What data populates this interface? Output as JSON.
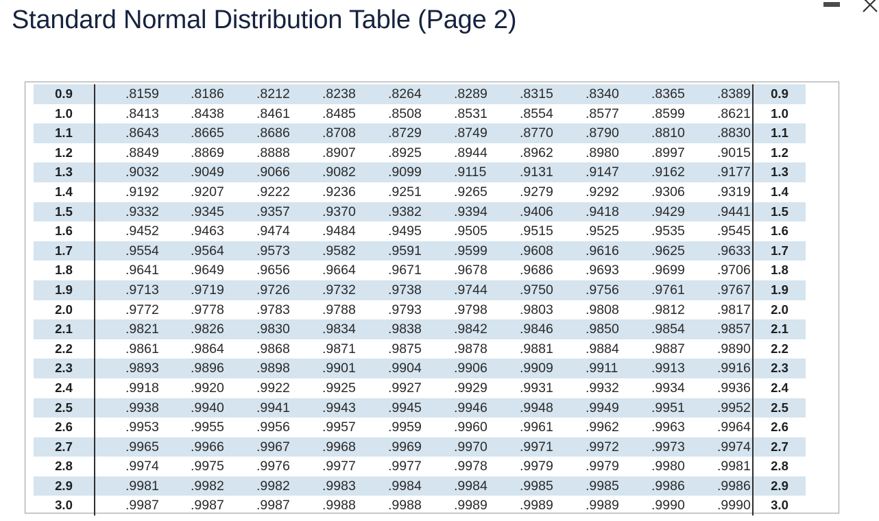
{
  "title": "Standard Normal Distribution Table (Page 2)",
  "window_controls": {
    "minimize_icon": "minimize-icon",
    "close_icon": "close-icon"
  },
  "colors": {
    "shade": "#d5e4ef",
    "title": "#16233f"
  },
  "table": {
    "rows": [
      {
        "z": "0.9",
        "values": [
          ".8159",
          ".8186",
          ".8212",
          ".8238",
          ".8264",
          ".8289",
          ".8315",
          ".8340",
          ".8365",
          ".8389"
        ]
      },
      {
        "z": "1.0",
        "values": [
          ".8413",
          ".8438",
          ".8461",
          ".8485",
          ".8508",
          ".8531",
          ".8554",
          ".8577",
          ".8599",
          ".8621"
        ]
      },
      {
        "z": "1.1",
        "values": [
          ".8643",
          ".8665",
          ".8686",
          ".8708",
          ".8729",
          ".8749",
          ".8770",
          ".8790",
          ".8810",
          ".8830"
        ]
      },
      {
        "z": "1.2",
        "values": [
          ".8849",
          ".8869",
          ".8888",
          ".8907",
          ".8925",
          ".8944",
          ".8962",
          ".8980",
          ".8997",
          ".9015"
        ]
      },
      {
        "z": "1.3",
        "values": [
          ".9032",
          ".9049",
          ".9066",
          ".9082",
          ".9099",
          ".9115",
          ".9131",
          ".9147",
          ".9162",
          ".9177"
        ]
      },
      {
        "z": "1.4",
        "values": [
          ".9192",
          ".9207",
          ".9222",
          ".9236",
          ".9251",
          ".9265",
          ".9279",
          ".9292",
          ".9306",
          ".9319"
        ]
      },
      {
        "z": "1.5",
        "values": [
          ".9332",
          ".9345",
          ".9357",
          ".9370",
          ".9382",
          ".9394",
          ".9406",
          ".9418",
          ".9429",
          ".9441"
        ]
      },
      {
        "z": "1.6",
        "values": [
          ".9452",
          ".9463",
          ".9474",
          ".9484",
          ".9495",
          ".9505",
          ".9515",
          ".9525",
          ".9535",
          ".9545"
        ]
      },
      {
        "z": "1.7",
        "values": [
          ".9554",
          ".9564",
          ".9573",
          ".9582",
          ".9591",
          ".9599",
          ".9608",
          ".9616",
          ".9625",
          ".9633"
        ]
      },
      {
        "z": "1.8",
        "values": [
          ".9641",
          ".9649",
          ".9656",
          ".9664",
          ".9671",
          ".9678",
          ".9686",
          ".9693",
          ".9699",
          ".9706"
        ]
      },
      {
        "z": "1.9",
        "values": [
          ".9713",
          ".9719",
          ".9726",
          ".9732",
          ".9738",
          ".9744",
          ".9750",
          ".9756",
          ".9761",
          ".9767"
        ]
      },
      {
        "z": "2.0",
        "values": [
          ".9772",
          ".9778",
          ".9783",
          ".9788",
          ".9793",
          ".9798",
          ".9803",
          ".9808",
          ".9812",
          ".9817"
        ]
      },
      {
        "z": "2.1",
        "values": [
          ".9821",
          ".9826",
          ".9830",
          ".9834",
          ".9838",
          ".9842",
          ".9846",
          ".9850",
          ".9854",
          ".9857"
        ]
      },
      {
        "z": "2.2",
        "values": [
          ".9861",
          ".9864",
          ".9868",
          ".9871",
          ".9875",
          ".9878",
          ".9881",
          ".9884",
          ".9887",
          ".9890"
        ]
      },
      {
        "z": "2.3",
        "values": [
          ".9893",
          ".9896",
          ".9898",
          ".9901",
          ".9904",
          ".9906",
          ".9909",
          ".9911",
          ".9913",
          ".9916"
        ]
      },
      {
        "z": "2.4",
        "values": [
          ".9918",
          ".9920",
          ".9922",
          ".9925",
          ".9927",
          ".9929",
          ".9931",
          ".9932",
          ".9934",
          ".9936"
        ]
      },
      {
        "z": "2.5",
        "values": [
          ".9938",
          ".9940",
          ".9941",
          ".9943",
          ".9945",
          ".9946",
          ".9948",
          ".9949",
          ".9951",
          ".9952"
        ]
      },
      {
        "z": "2.6",
        "values": [
          ".9953",
          ".9955",
          ".9956",
          ".9957",
          ".9959",
          ".9960",
          ".9961",
          ".9962",
          ".9963",
          ".9964"
        ]
      },
      {
        "z": "2.7",
        "values": [
          ".9965",
          ".9966",
          ".9967",
          ".9968",
          ".9969",
          ".9970",
          ".9971",
          ".9972",
          ".9973",
          ".9974"
        ]
      },
      {
        "z": "2.8",
        "values": [
          ".9974",
          ".9975",
          ".9976",
          ".9977",
          ".9977",
          ".9978",
          ".9979",
          ".9979",
          ".9980",
          ".9981"
        ]
      },
      {
        "z": "2.9",
        "values": [
          ".9981",
          ".9982",
          ".9982",
          ".9983",
          ".9984",
          ".9984",
          ".9985",
          ".9985",
          ".9986",
          ".9986"
        ]
      },
      {
        "z": "3.0",
        "values": [
          ".9987",
          ".9987",
          ".9987",
          ".9988",
          ".9988",
          ".9989",
          ".9989",
          ".9989",
          ".9990",
          ".9990"
        ]
      }
    ]
  }
}
